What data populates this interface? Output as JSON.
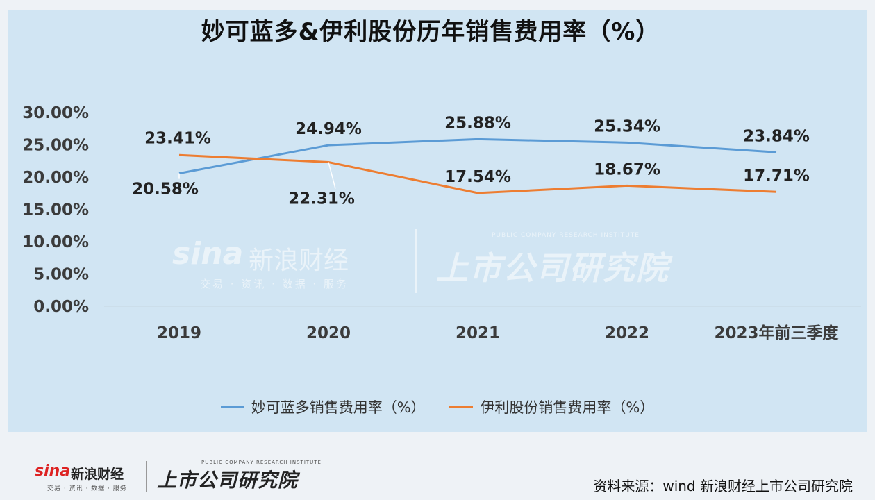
{
  "chart_data": {
    "type": "line",
    "title": "妙可蓝多&伊利股份历年销售费用率（%）",
    "categories": [
      "2019",
      "2020",
      "2021",
      "2022",
      "2023年前三季度"
    ],
    "y_ticks": [
      "0.00%",
      "5.00%",
      "10.00%",
      "15.00%",
      "20.00%",
      "25.00%",
      "30.00%"
    ],
    "ylim": [
      0,
      30
    ],
    "grid": false,
    "legend_position": "bottom",
    "series": [
      {
        "name": "妙可蓝多销售费用率（%）",
        "color": "#5b9bd5",
        "values": [
          20.58,
          24.94,
          25.88,
          25.34,
          23.84
        ],
        "labels": [
          "20.58%",
          "24.94%",
          "25.88%",
          "25.34%",
          "23.84%"
        ]
      },
      {
        "name": "伊利股份销售费用率（%）",
        "color": "#ed7d31",
        "values": [
          23.41,
          22.31,
          17.54,
          18.67,
          17.71
        ],
        "labels": [
          "23.41%",
          "22.31%",
          "17.54%",
          "18.67%",
          "17.71%"
        ]
      }
    ]
  },
  "watermark": {
    "brand": "sina",
    "brand_cn": "新浪财经",
    "brand_sub": "交易 · 资讯 · 数据 · 服务",
    "institute": "上市公司研究院",
    "institute_en": "PUBLIC COMPANY RESEARCH INSTITUTE"
  },
  "footer": {
    "brand": "sina",
    "brand_cn": "新浪财经",
    "brand_sub": "交易 · 资讯 · 数据 · 服务",
    "institute": "上市公司研究院",
    "institute_en": "PUBLIC COMPANY RESEARCH INSTITUTE",
    "source": "资料来源：wind 新浪财经上市公司研究院"
  }
}
